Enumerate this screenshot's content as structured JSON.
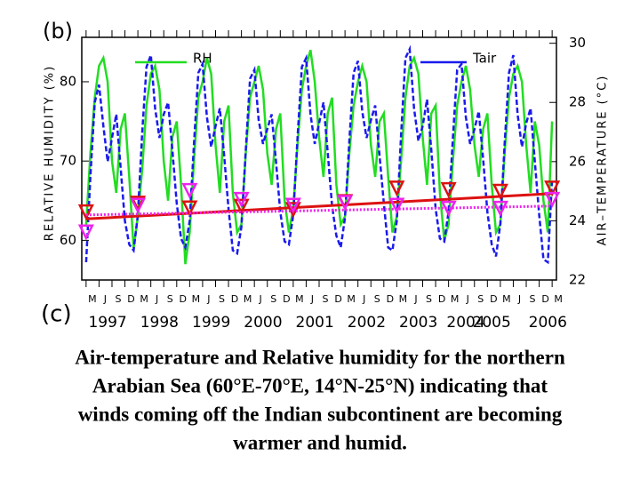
{
  "chart_data": {
    "type": "line",
    "panel_labels": [
      "(b)",
      "(c)"
    ],
    "ylabel": "RELATIVE HUMIDITY (%)",
    "y2label": "AIR–TEMPERATURE (°C)",
    "caption_lines": [
      "Air-temperature and Relative humidity for the northern",
      "Arabian Sea (60°E-70°E, 14°N-25°N) indicating that",
      "winds coming off the Indian subcontinent are becoming",
      "warmer and humid."
    ],
    "x": [
      "1997-03",
      "1997-04",
      "1997-05",
      "1997-06",
      "1997-07",
      "1997-08",
      "1997-09",
      "1997-10",
      "1997-11",
      "1997-12",
      "1998-01",
      "1998-02",
      "1998-03",
      "1998-04",
      "1998-05",
      "1998-06",
      "1998-07",
      "1998-08",
      "1998-09",
      "1998-10",
      "1998-11",
      "1998-12",
      "1999-01",
      "1999-02",
      "1999-03",
      "1999-04",
      "1999-05",
      "1999-06",
      "1999-07",
      "1999-08",
      "1999-09",
      "1999-10",
      "1999-11",
      "1999-12",
      "2000-01",
      "2000-02",
      "2000-03",
      "2000-04",
      "2000-05",
      "2000-06",
      "2000-07",
      "2000-08",
      "2000-09",
      "2000-10",
      "2000-11",
      "2000-12",
      "2001-01",
      "2001-02",
      "2001-03",
      "2001-04",
      "2001-05",
      "2001-06",
      "2001-07",
      "2001-08",
      "2001-09",
      "2001-10",
      "2001-11",
      "2001-12",
      "2002-01",
      "2002-02",
      "2002-03",
      "2002-04",
      "2002-05",
      "2002-06",
      "2002-07",
      "2002-08",
      "2002-09",
      "2002-10",
      "2002-11",
      "2002-12",
      "2003-01",
      "2003-02",
      "2003-03",
      "2003-04",
      "2003-05",
      "2003-06",
      "2003-07",
      "2003-08",
      "2003-09",
      "2003-10",
      "2003-11",
      "2003-12",
      "2004-01",
      "2004-02",
      "2004-03",
      "2004-04",
      "2004-05",
      "2004-06",
      "2004-07",
      "2004-08",
      "2004-09",
      "2004-10",
      "2004-11",
      "2004-12",
      "2005-01",
      "2005-02",
      "2005-03",
      "2005-04",
      "2005-05",
      "2005-06",
      "2005-07",
      "2005-08",
      "2005-09",
      "2005-10",
      "2005-11",
      "2005-12",
      "2006-01",
      "2006-02",
      "2006-03"
    ],
    "series": [
      {
        "name": "RH",
        "color": "#22dd22",
        "style": "solid",
        "axis": "y",
        "values": [
          62,
          71,
          78,
          82,
          83,
          80,
          70,
          66,
          74,
          76,
          68,
          59,
          63,
          69,
          77,
          81,
          82,
          79,
          70,
          65,
          73,
          75,
          67,
          57,
          61,
          70,
          78,
          80,
          83,
          81,
          72,
          66,
          75,
          77,
          66,
          61,
          62,
          71,
          78,
          80,
          82,
          79,
          71,
          67,
          74,
          76,
          65,
          61,
          64,
          72,
          79,
          82,
          84,
          80,
          73,
          68,
          76,
          78,
          67,
          62,
          63,
          71,
          77,
          80,
          82,
          80,
          72,
          68,
          75,
          76,
          68,
          61,
          63,
          70,
          78,
          82,
          83,
          81,
          73,
          67,
          76,
          77,
          66,
          60,
          62,
          70,
          77,
          80,
          82,
          79,
          72,
          68,
          74,
          76,
          67,
          61,
          62,
          71,
          78,
          81,
          82,
          80,
          72,
          66,
          75,
          72,
          65,
          61,
          75
        ]
      },
      {
        "name": "Tair",
        "color": "#1a1aee",
        "style": "dashed",
        "axis": "y2",
        "values": [
          22.6,
          25.5,
          28.0,
          28.6,
          27.2,
          26.0,
          26.8,
          27.6,
          25.8,
          24.0,
          23.2,
          23.0,
          24.2,
          27.0,
          29.2,
          29.6,
          27.8,
          26.8,
          27.6,
          28.0,
          26.4,
          24.6,
          23.4,
          23.1,
          24.0,
          26.6,
          29.0,
          29.3,
          27.5,
          26.5,
          27.2,
          27.8,
          26.2,
          24.4,
          23.0,
          22.9,
          23.8,
          26.4,
          28.8,
          29.1,
          27.4,
          26.6,
          27.1,
          27.6,
          26.0,
          24.3,
          23.3,
          23.2,
          24.2,
          26.8,
          29.2,
          29.5,
          27.6,
          26.6,
          27.3,
          28.0,
          26.3,
          24.5,
          23.5,
          23.1,
          24.1,
          26.7,
          29.0,
          29.4,
          27.7,
          26.8,
          27.4,
          27.9,
          26.2,
          24.6,
          23.1,
          23.0,
          24.0,
          26.9,
          29.5,
          29.8,
          27.8,
          26.7,
          27.2,
          28.1,
          26.4,
          24.4,
          23.4,
          23.3,
          24.3,
          26.8,
          29.1,
          29.3,
          27.5,
          26.6,
          27.1,
          27.7,
          26.1,
          24.3,
          23.2,
          22.8,
          23.9,
          26.6,
          29.0,
          29.6,
          27.6,
          26.5,
          27.3,
          27.8,
          26.0,
          24.2,
          22.7,
          22.6,
          25.4
        ]
      }
    ],
    "trends": [
      {
        "color": "#dd1111",
        "style": "solid",
        "axis": "y",
        "x": [
          "1997-03",
          "2006-03"
        ],
        "values": [
          62.7,
          65.9
        ],
        "marker_x": [
          "1997-03",
          "1998-03",
          "1999-03",
          "2000-03",
          "2001-03",
          "2002-03",
          "2003-03",
          "2004-03",
          "2005-03",
          "2006-03"
        ],
        "marker_values": [
          63.5,
          64.6,
          64.0,
          64.2,
          63.8,
          64.8,
          66.5,
          66.3,
          66.1,
          66.5
        ]
      },
      {
        "color": "#ee22ee",
        "style": "dotted",
        "axis": "y2",
        "x": [
          "1997-03",
          "2006-03"
        ],
        "values": [
          24.2,
          24.5
        ],
        "marker_x": [
          "1997-03",
          "1998-03",
          "1999-03",
          "2000-03",
          "2001-03",
          "2002-03",
          "2003-03",
          "2004-03",
          "2005-03",
          "2006-03"
        ],
        "marker_values": [
          23.6,
          24.5,
          25.0,
          24.7,
          24.5,
          24.6,
          24.5,
          24.4,
          24.4,
          24.7
        ]
      }
    ],
    "xlim": [
      "1997-02",
      "2006-04"
    ],
    "xticks": [
      {
        "value": "1997-03",
        "label": "M"
      },
      {
        "value": "1997-06",
        "label": "J"
      },
      {
        "value": "1997-09",
        "label": "S"
      },
      {
        "value": "1997-12",
        "label": "D"
      },
      {
        "value": "1998-03",
        "label": "M"
      },
      {
        "value": "1998-06",
        "label": "J"
      },
      {
        "value": "1998-09",
        "label": "S"
      },
      {
        "value": "1998-12",
        "label": "D"
      },
      {
        "value": "1999-03",
        "label": "M"
      },
      {
        "value": "1999-06",
        "label": "J"
      },
      {
        "value": "1999-09",
        "label": "S"
      },
      {
        "value": "1999-12",
        "label": "D"
      },
      {
        "value": "2000-03",
        "label": "M"
      },
      {
        "value": "2000-06",
        "label": "J"
      },
      {
        "value": "2000-09",
        "label": "S"
      },
      {
        "value": "2000-12",
        "label": "D"
      },
      {
        "value": "2001-03",
        "label": "M"
      },
      {
        "value": "2001-06",
        "label": "J"
      },
      {
        "value": "2001-09",
        "label": "S"
      },
      {
        "value": "2001-12",
        "label": "D"
      },
      {
        "value": "2002-03",
        "label": "M"
      },
      {
        "value": "2002-06",
        "label": "J"
      },
      {
        "value": "2002-09",
        "label": "S"
      },
      {
        "value": "2002-12",
        "label": "D"
      },
      {
        "value": "2003-03",
        "label": "M"
      },
      {
        "value": "2003-06",
        "label": "J"
      },
      {
        "value": "2003-09",
        "label": "S"
      },
      {
        "value": "2003-12",
        "label": "D"
      },
      {
        "value": "2004-03",
        "label": "M"
      },
      {
        "value": "2004-06",
        "label": "J"
      },
      {
        "value": "2004-09",
        "label": "S"
      },
      {
        "value": "2004-12",
        "label": "D"
      },
      {
        "value": "2005-03",
        "label": "M"
      },
      {
        "value": "2005-06",
        "label": "J"
      },
      {
        "value": "2005-09",
        "label": "S"
      },
      {
        "value": "2005-12",
        "label": "D"
      },
      {
        "value": "2006-03",
        "label": "M"
      }
    ],
    "xticks_years": [
      {
        "value": "1997-08",
        "label": "1997"
      },
      {
        "value": "1998-08",
        "label": "1998"
      },
      {
        "value": "1999-08",
        "label": "1999"
      },
      {
        "value": "2000-08",
        "label": "2000"
      },
      {
        "value": "2001-08",
        "label": "2001"
      },
      {
        "value": "2002-08",
        "label": "2002"
      },
      {
        "value": "2003-08",
        "label": "2003"
      },
      {
        "value": "2004-07",
        "label": "2004"
      },
      {
        "value": "2005-01",
        "label": "2005"
      },
      {
        "value": "2006-02",
        "label": "2006"
      }
    ],
    "ylim": [
      55,
      85.6
    ],
    "yticks": [
      60,
      70,
      80
    ],
    "y2lim": [
      22,
      30.2
    ],
    "y2ticks": [
      22,
      24,
      26,
      28,
      30
    ]
  }
}
